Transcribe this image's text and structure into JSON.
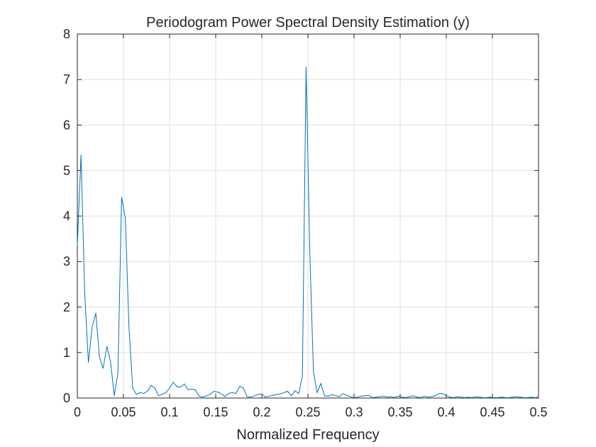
{
  "chart_data": {
    "type": "line",
    "title": "Periodogram Power Spectral Density Estimation (y)",
    "xlabel": "Normalized Frequency",
    "ylabel": "",
    "xlim": [
      0,
      0.5
    ],
    "ylim": [
      0,
      8
    ],
    "xticks": [
      0,
      0.05,
      0.1,
      0.15,
      0.2,
      0.25,
      0.3,
      0.35,
      0.4,
      0.45,
      0.5
    ],
    "xtick_labels": [
      "0",
      "0.05",
      "0.1",
      "0.15",
      "0.2",
      "0.25",
      "0.3",
      "0.35",
      "0.4",
      "0.45",
      "0.5"
    ],
    "yticks": [
      0,
      1,
      2,
      3,
      4,
      5,
      6,
      7,
      8
    ],
    "ytick_labels": [
      "0",
      "1",
      "2",
      "3",
      "4",
      "5",
      "6",
      "7",
      "8"
    ],
    "grid": true,
    "line_color": "#0072bd",
    "series": [
      {
        "x": [
          0,
          0.004,
          0.008,
          0.012,
          0.016,
          0.02,
          0.024,
          0.028,
          0.032,
          0.036,
          0.04,
          0.044,
          0.048,
          0.052,
          0.056,
          0.06,
          0.064,
          0.068,
          0.072,
          0.076,
          0.08,
          0.084,
          0.088,
          0.092,
          0.096,
          0.1,
          0.104,
          0.108,
          0.112,
          0.116,
          0.12,
          0.124,
          0.128,
          0.132,
          0.136,
          0.14,
          0.144,
          0.148,
          0.152,
          0.156,
          0.16,
          0.164,
          0.168,
          0.172,
          0.176,
          0.18,
          0.184,
          0.188,
          0.192,
          0.196,
          0.2,
          0.204,
          0.208,
          0.212,
          0.216,
          0.22,
          0.224,
          0.228,
          0.232,
          0.236,
          0.24,
          0.244,
          0.248,
          0.252,
          0.256,
          0.26,
          0.264,
          0.268,
          0.272,
          0.276,
          0.28,
          0.284,
          0.288,
          0.292,
          0.296,
          0.3,
          0.304,
          0.308,
          0.312,
          0.316,
          0.32,
          0.324,
          0.328,
          0.332,
          0.336,
          0.34,
          0.344,
          0.348,
          0.352,
          0.356,
          0.36,
          0.364,
          0.368,
          0.372,
          0.376,
          0.38,
          0.384,
          0.388,
          0.392,
          0.396,
          0.4,
          0.404,
          0.408,
          0.412,
          0.416,
          0.42,
          0.424,
          0.428,
          0.432,
          0.436,
          0.44,
          0.444,
          0.448,
          0.452,
          0.456,
          0.46,
          0.464,
          0.468,
          0.472,
          0.476,
          0.48,
          0.484,
          0.488,
          0.492,
          0.496,
          0.5
        ],
        "values": [
          3.35,
          5.35,
          2.3,
          0.78,
          1.55,
          1.87,
          0.9,
          0.65,
          1.14,
          0.8,
          0.05,
          0.55,
          4.42,
          3.95,
          1.55,
          0.22,
          0.08,
          0.12,
          0.1,
          0.15,
          0.28,
          0.22,
          0.05,
          0.08,
          0.12,
          0.22,
          0.35,
          0.25,
          0.24,
          0.31,
          0.18,
          0.2,
          0.18,
          0.04,
          0.02,
          0.05,
          0.08,
          0.15,
          0.13,
          0.1,
          0.03,
          0.1,
          0.12,
          0.1,
          0.26,
          0.22,
          0.03,
          0.02,
          0.05,
          0.08,
          0.09,
          0.02,
          0.04,
          0.06,
          0.08,
          0.09,
          0.12,
          0.15,
          0.05,
          0.16,
          0.1,
          0.48,
          7.28,
          3.2,
          0.57,
          0.12,
          0.32,
          0.05,
          0.04,
          0.08,
          0.05,
          0.03,
          0.1,
          0.06,
          0.03,
          0.01,
          0.02,
          0.04,
          0.05,
          0.06,
          0.01,
          0.02,
          0.03,
          0.04,
          0.02,
          0.03,
          0.01,
          0.04,
          0.02,
          0.01,
          0.03,
          0.05,
          0.02,
          0.01,
          0.04,
          0.02,
          0.03,
          0.05,
          0.1,
          0.1,
          0.05,
          0.02,
          0.01,
          0.03,
          0.02,
          0.01,
          0.02,
          0.01,
          0.03,
          0.02,
          0.01,
          0.01,
          0.02,
          0.01,
          0.01,
          0.02,
          0.01,
          0.01,
          0.02,
          0.03,
          0.02,
          0.01,
          0.01,
          0.02,
          0.01,
          0.02
        ]
      }
    ]
  }
}
